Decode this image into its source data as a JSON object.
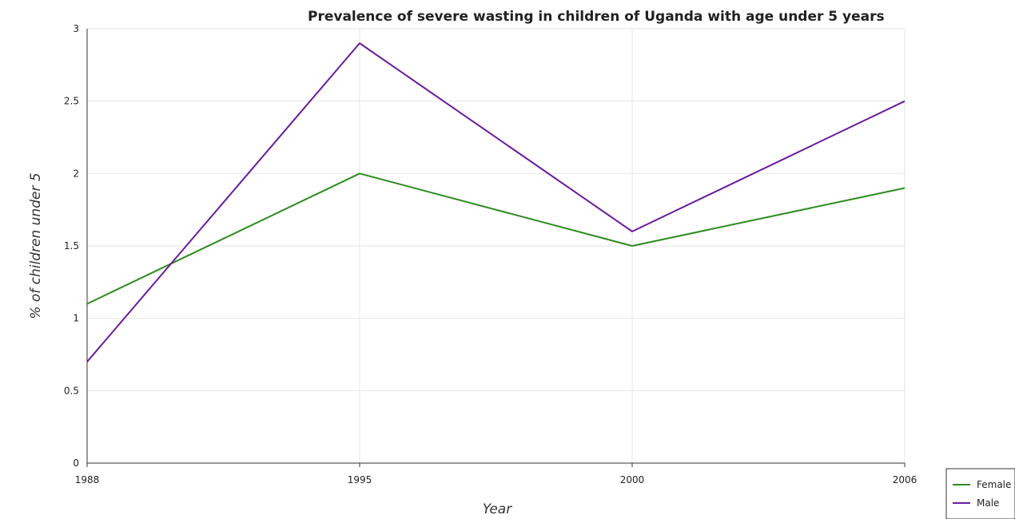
{
  "chart_data": {
    "type": "line",
    "title": "Prevalence of severe wasting in children of Uganda with age under 5 years",
    "xlabel": "Year",
    "ylabel": "% of children under 5",
    "categories": [
      "1988",
      "1995",
      "2000",
      "2006"
    ],
    "ylim": [
      0,
      3
    ],
    "yticks": [
      "0",
      "0.5",
      "1",
      "1.5",
      "2",
      "2.5",
      "3"
    ],
    "grid": true,
    "legend_position": "bottom-right",
    "series": [
      {
        "name": "Female",
        "color": "#2e8b1f",
        "values": [
          1.1,
          2.0,
          1.5,
          1.9
        ]
      },
      {
        "name": "Male",
        "color": "#6a1b9a",
        "values": [
          0.7,
          2.9,
          1.6,
          2.5
        ]
      }
    ]
  }
}
